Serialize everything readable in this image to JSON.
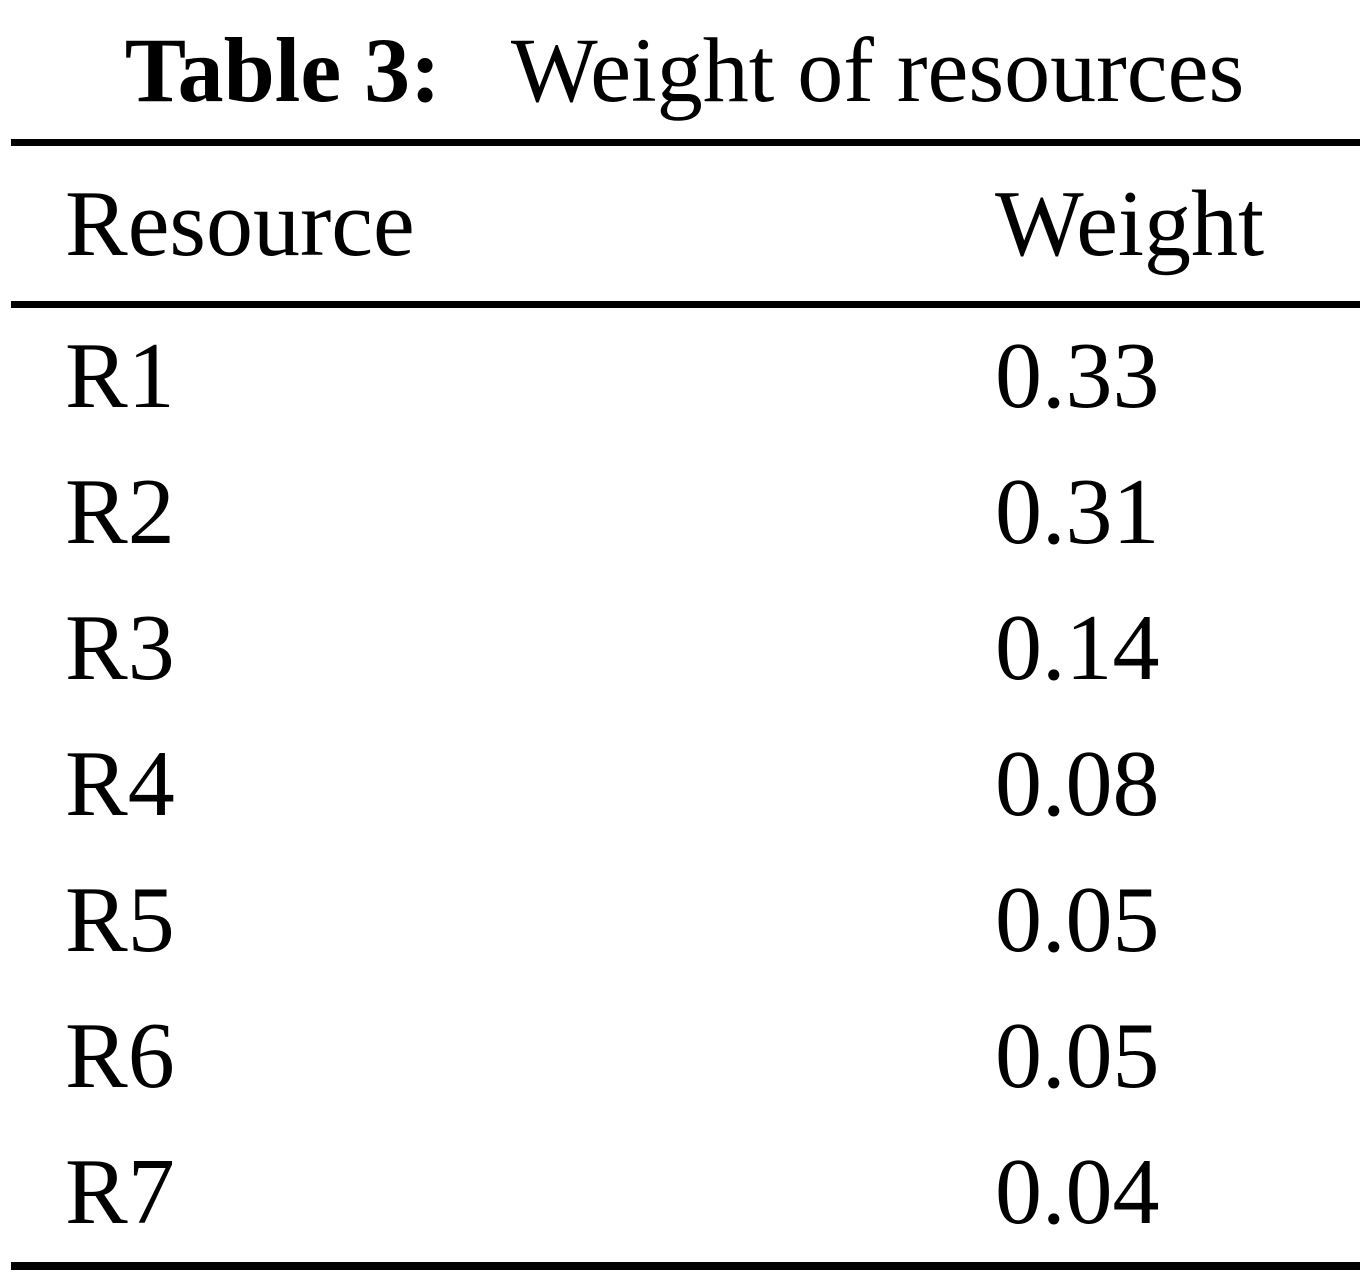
{
  "caption": {
    "label": "Table 3:",
    "text": "Weight of resources"
  },
  "table": {
    "headers": {
      "resource": "Resource",
      "weight": "Weight"
    },
    "rows": [
      {
        "resource": "R1",
        "weight": "0.33"
      },
      {
        "resource": "R2",
        "weight": "0.31"
      },
      {
        "resource": "R3",
        "weight": "0.14"
      },
      {
        "resource": "R4",
        "weight": "0.08"
      },
      {
        "resource": "R5",
        "weight": "0.05"
      },
      {
        "resource": "R6",
        "weight": "0.05"
      },
      {
        "resource": "R7",
        "weight": "0.04"
      }
    ]
  },
  "colors": {
    "background": "#ffffff",
    "text": "#000000",
    "rule": "#000000"
  },
  "chart_data": {
    "type": "table",
    "title": "Table 3: Weight of resources",
    "columns": [
      "Resource",
      "Weight"
    ],
    "rows": [
      [
        "R1",
        0.33
      ],
      [
        "R2",
        0.31
      ],
      [
        "R3",
        0.14
      ],
      [
        "R4",
        0.08
      ],
      [
        "R5",
        0.05
      ],
      [
        "R6",
        0.05
      ],
      [
        "R7",
        0.04
      ]
    ]
  }
}
